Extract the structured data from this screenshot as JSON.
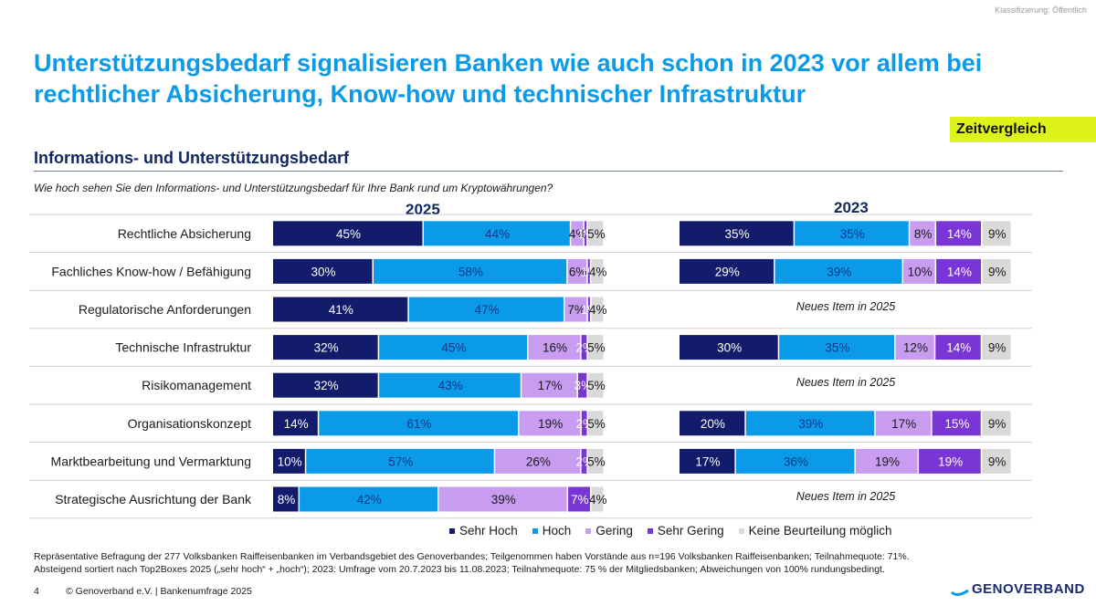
{
  "classification": "Klassifizierung: Öffentlich",
  "title": "Unterstützungsbedarf signalisieren Banken wie auch schon in 2023 vor allem bei rechtlicher Absicherung, Know-how und technischer Infrastruktur",
  "badge": "Zeitvergleich",
  "section_title": "Informations- und Unterstützungsbedarf",
  "question": "Wie hoch sehen Sie den Informations- und Unterstützungsbedarf für Ihre Bank rund um Kryptowährungen?",
  "colors": {
    "sehr_hoch": "#121c6b",
    "hoch": "#0b9ae8",
    "gering": "#c89cf0",
    "sehr_gering": "#7a35d6",
    "keine": "#d9d9d9"
  },
  "chart_data": {
    "type": "stacked-bar-horizontal",
    "unit": "%",
    "categories": [
      "Rechtliche Absicherung",
      "Fachliches Know-how / Befähigung",
      "Regulatorische Anforderungen",
      "Technische Infrastruktur",
      "Risikomanagement",
      "Organisationskonzept",
      "Marktbearbeitung und Vermarktung",
      "Strategische Ausrichtung der Bank"
    ],
    "series_names": [
      "Sehr Hoch",
      "Hoch",
      "Gering",
      "Sehr Gering",
      "Keine Beurteilung möglich"
    ],
    "panels": [
      {
        "year": "2025",
        "rows": [
          [
            45,
            44,
            4,
            1,
            5
          ],
          [
            30,
            58,
            6,
            1,
            4
          ],
          [
            41,
            47,
            7,
            1,
            4
          ],
          [
            32,
            45,
            16,
            2,
            5
          ],
          [
            32,
            43,
            17,
            3,
            5
          ],
          [
            14,
            61,
            19,
            2,
            5
          ],
          [
            10,
            57,
            26,
            2,
            5
          ],
          [
            8,
            42,
            39,
            7,
            4
          ]
        ]
      },
      {
        "year": "2023",
        "new_item_note": "Neues Item in 2025",
        "rows": [
          [
            35,
            35,
            8,
            14,
            9
          ],
          [
            29,
            39,
            10,
            14,
            9
          ],
          null,
          [
            30,
            35,
            12,
            14,
            9
          ],
          null,
          [
            20,
            39,
            17,
            15,
            9
          ],
          [
            17,
            36,
            19,
            19,
            9
          ],
          null
        ]
      }
    ]
  },
  "footnote_line1": "Repräsentative Befragung der 277 Volksbanken Raiffeisenbanken im Verbandsgebiet des Genoverbandes; Teilgenommen haben Vorstände aus n=196 Volksbanken Raiffeisenbanken; Teilnahmequote: 71%.",
  "footnote_line2": "Absteigend sortiert nach Top2Boxes 2025 („sehr hoch“ + „hoch“); 2023: Umfrage vom 20.7.2023 bis 11.08.2023; Teilnahmequote: 75 % der Mitgliedsbanken; Abweichungen von 100% rundungsbedingt.",
  "page_number": "4",
  "copyright": "© Genoverband e.V. | Bankenumfrage 2025",
  "logo_text": "GENOVERBAND"
}
